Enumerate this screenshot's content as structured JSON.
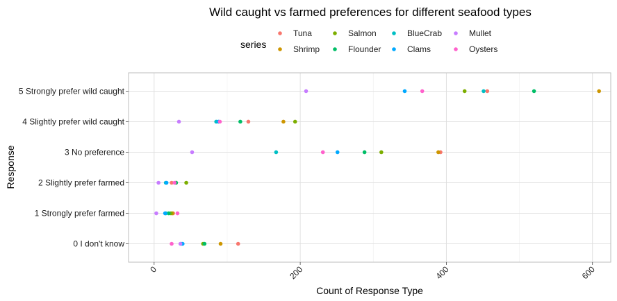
{
  "chart_data": {
    "type": "scatter",
    "title": "Wild caught vs farmed preferences for different seafood types",
    "xlabel": "Count of Response Type",
    "ylabel": "Response",
    "legend_title": "series",
    "legend_position": "top",
    "grid": true,
    "xlim": [
      -35,
      625
    ],
    "x_ticks": [
      0,
      200,
      400,
      600
    ],
    "categories": [
      "0 I don't know",
      "1 Strongly prefer farmed",
      "2 Slightly prefer farmed",
      "3 No preference",
      "4 Slightly prefer wild caught",
      "5 Strongly prefer wild caught"
    ],
    "series": [
      {
        "name": "Tuna",
        "color": "#F8766D",
        "values": [
          115,
          26,
          24,
          392,
          129,
          456
        ]
      },
      {
        "name": "Shrimp",
        "color": "#CD9600",
        "values": [
          91,
          25,
          30,
          389,
          177,
          609
        ]
      },
      {
        "name": "Salmon",
        "color": "#7CAE00",
        "values": [
          67,
          23,
          44,
          311,
          193,
          425
        ]
      },
      {
        "name": "Flounder",
        "color": "#00BE67",
        "values": [
          69,
          20,
          30,
          288,
          118,
          520
        ]
      },
      {
        "name": "BlueCrab",
        "color": "#00BFC4",
        "values": [
          37,
          16,
          16,
          167,
          85,
          451
        ]
      },
      {
        "name": "Clams",
        "color": "#00A9FF",
        "values": [
          39,
          15,
          17,
          251,
          88,
          343
        ]
      },
      {
        "name": "Mullet",
        "color": "#C77CFF",
        "values": [
          36,
          3,
          6,
          52,
          34,
          208
        ]
      },
      {
        "name": "Oysters",
        "color": "#FF61CC",
        "values": [
          24,
          32,
          28,
          231,
          90,
          367
        ]
      }
    ]
  }
}
